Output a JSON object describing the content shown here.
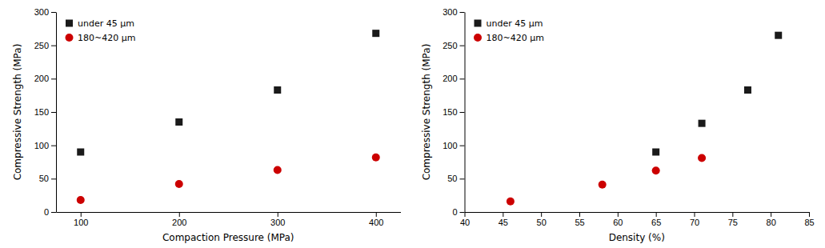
{
  "chart_data": [
    {
      "type": "scatter",
      "xlabel": "Compaction Pressure (MPa)",
      "ylabel": "Compressive Strength (MPa)",
      "xlim": [
        75,
        425
      ],
      "ylim": [
        0,
        300
      ],
      "xticks": [
        100,
        200,
        300,
        400
      ],
      "yticks": [
        0,
        50,
        100,
        150,
        200,
        250,
        300
      ],
      "grid": false,
      "legend": "top-left",
      "series": [
        {
          "name": "under 45 μm",
          "color": "#1a1a1a",
          "marker": "square",
          "x": [
            100,
            200,
            300,
            400
          ],
          "values": [
            90,
            135,
            183,
            268
          ]
        },
        {
          "name": "180~420 μm",
          "color": "#cc0000",
          "marker": "circle",
          "x": [
            100,
            200,
            300,
            400
          ],
          "values": [
            18,
            42,
            63,
            82
          ]
        }
      ]
    },
    {
      "type": "scatter",
      "xlabel": "Density (%)",
      "ylabel": "Compressive Strength (MPa)",
      "xlim": [
        40,
        85
      ],
      "ylim": [
        0,
        300
      ],
      "xticks": [
        40,
        45,
        50,
        55,
        60,
        65,
        70,
        75,
        80,
        85
      ],
      "yticks": [
        0,
        50,
        100,
        150,
        200,
        250,
        300
      ],
      "grid": false,
      "legend": "top-left",
      "series": [
        {
          "name": "under 45 μm",
          "color": "#1a1a1a",
          "marker": "square",
          "x": [
            65,
            71,
            77,
            81
          ],
          "values": [
            90,
            133,
            183,
            265
          ]
        },
        {
          "name": "180~420 μm",
          "color": "#cc0000",
          "marker": "circle",
          "x": [
            46,
            58,
            65,
            71
          ],
          "values": [
            16,
            41,
            62,
            81
          ]
        }
      ]
    }
  ]
}
